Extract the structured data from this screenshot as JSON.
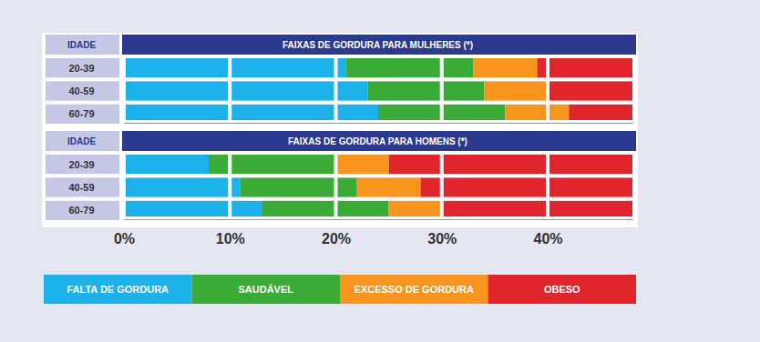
{
  "chart_data": [
    {
      "type": "bar",
      "title": "FAIXAS DE GORDURA PARA MULHERES (*)",
      "y_label": "IDADE",
      "orientation": "horizontal",
      "stacked": true,
      "grid": true,
      "tick_labels": false,
      "categories": [
        "20-39",
        "40-59",
        "60-79"
      ],
      "series": [
        {
          "color": "#1cb1e9",
          "values": [
            21,
            23,
            24
          ]
        },
        {
          "color": "#3aab37",
          "values": [
            12,
            11,
            12
          ]
        },
        {
          "color": "#f7951e",
          "values": [
            6,
            6,
            6
          ]
        },
        {
          "color": "#e0262c",
          "values": [
            9,
            8,
            6
          ]
        }
      ],
      "xlim": [
        0,
        48
      ],
      "xticks": [
        0,
        10,
        20,
        30,
        40
      ]
    },
    {
      "type": "bar",
      "title": "FAIXAS DE GORDURA PARA HOMENS (*)",
      "y_label": "IDADE",
      "orientation": "horizontal",
      "stacked": true,
      "grid": true,
      "categories": [
        "20-39",
        "40-59",
        "60-79"
      ],
      "series": [
        {
          "name": "FALTA DE GORDURA",
          "color": "#1cb1e9",
          "values": [
            8,
            11,
            13
          ]
        },
        {
          "name": "SAUDÁVEL",
          "color": "#3aab37",
          "values": [
            12,
            11,
            12
          ]
        },
        {
          "name": "EXCESSO DE GORDURA",
          "color": "#f7951e",
          "values": [
            5,
            6,
            5
          ]
        },
        {
          "name": "OBESO",
          "color": "#e0262c",
          "values": [
            23,
            20,
            18
          ]
        }
      ],
      "xlim": [
        0,
        48
      ],
      "xticks": [
        {
          "value": 0,
          "label": "0%"
        },
        {
          "value": 10,
          "label": "10%"
        },
        {
          "value": 20,
          "label": "20%"
        },
        {
          "value": 30,
          "label": "30%"
        },
        {
          "value": 40,
          "label": "40%"
        }
      ]
    }
  ]
}
